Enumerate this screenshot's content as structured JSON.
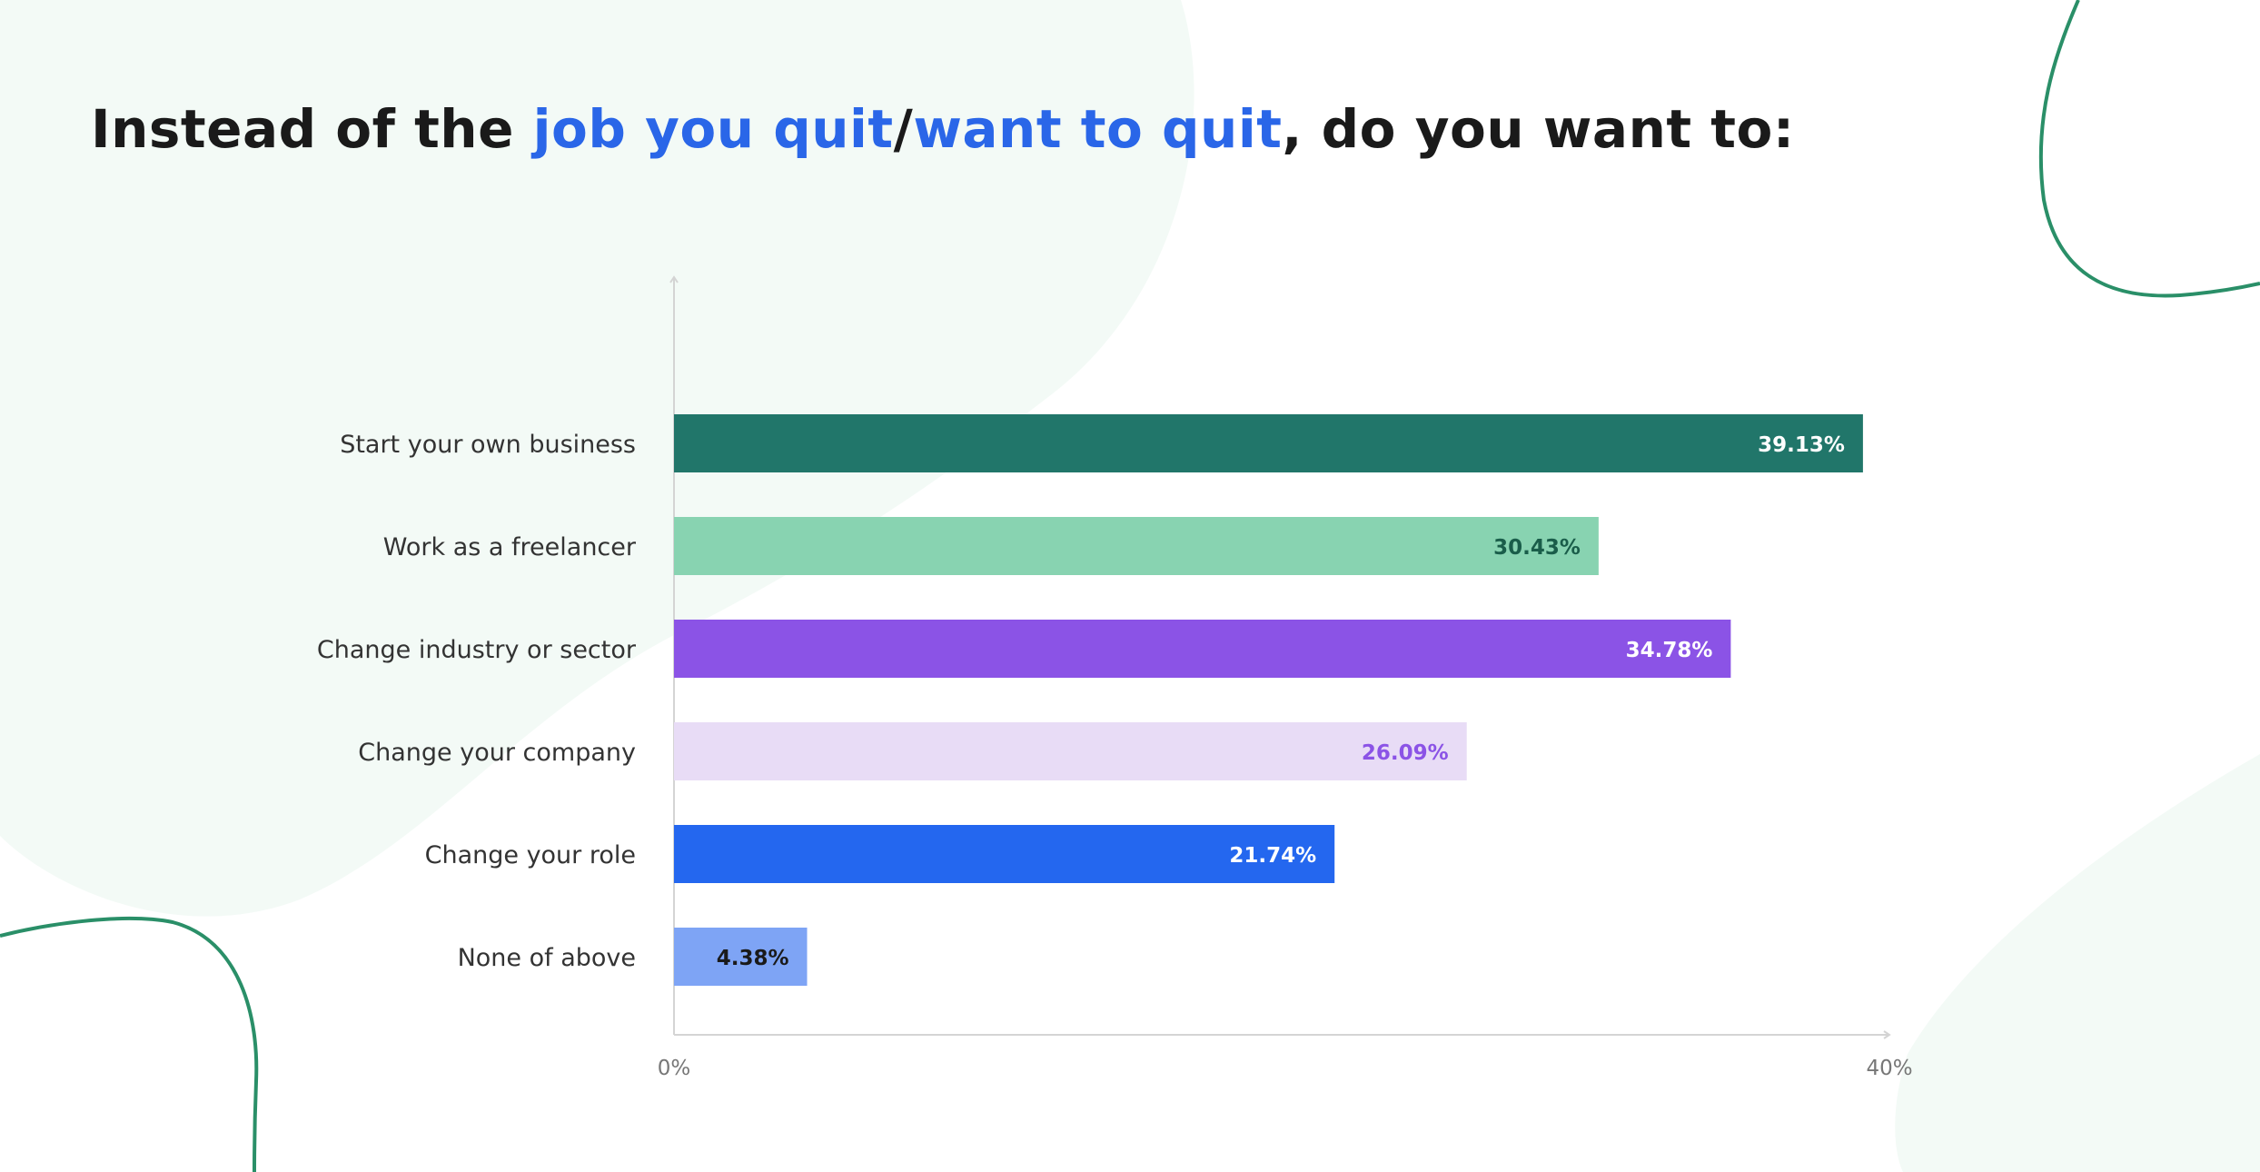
{
  "title": {
    "part1": "Instead of the ",
    "highlight1": "job you quit",
    "separator": "/",
    "highlight2": "want to quit",
    "part2": ", do you want to:"
  },
  "colors": {
    "title_text": "#1a1a1a",
    "title_highlight": "#2a66e8",
    "background_blob": "#f3faf6",
    "decor_line": "#2a8f68",
    "axis": "#d4d4d4"
  },
  "chart_data": {
    "type": "bar",
    "orientation": "horizontal",
    "categories": [
      "Start your own business",
      "Work as a freelancer",
      "Change industry or sector",
      "Change your company",
      "Change your role",
      "None of above"
    ],
    "values": [
      39.13,
      30.43,
      34.78,
      26.09,
      21.74,
      4.38
    ],
    "value_labels": [
      "39.13%",
      "30.43%",
      "34.78%",
      "26.09%",
      "21.74%",
      "4.38%"
    ],
    "bar_colors": [
      "#21766a",
      "#88d3b1",
      "#8b53e6",
      "#e8dcf6",
      "#2467ef",
      "#7ea4f5"
    ],
    "label_colors": [
      "#ffffff",
      "#1a5d4a",
      "#ffffff",
      "#8b53e6",
      "#ffffff",
      "#1a1a1a"
    ],
    "xlim": [
      0,
      40
    ],
    "x_ticks": [
      "0%",
      "40%"
    ],
    "xlabel": "",
    "ylabel": "",
    "grid": false,
    "legend": "none"
  }
}
